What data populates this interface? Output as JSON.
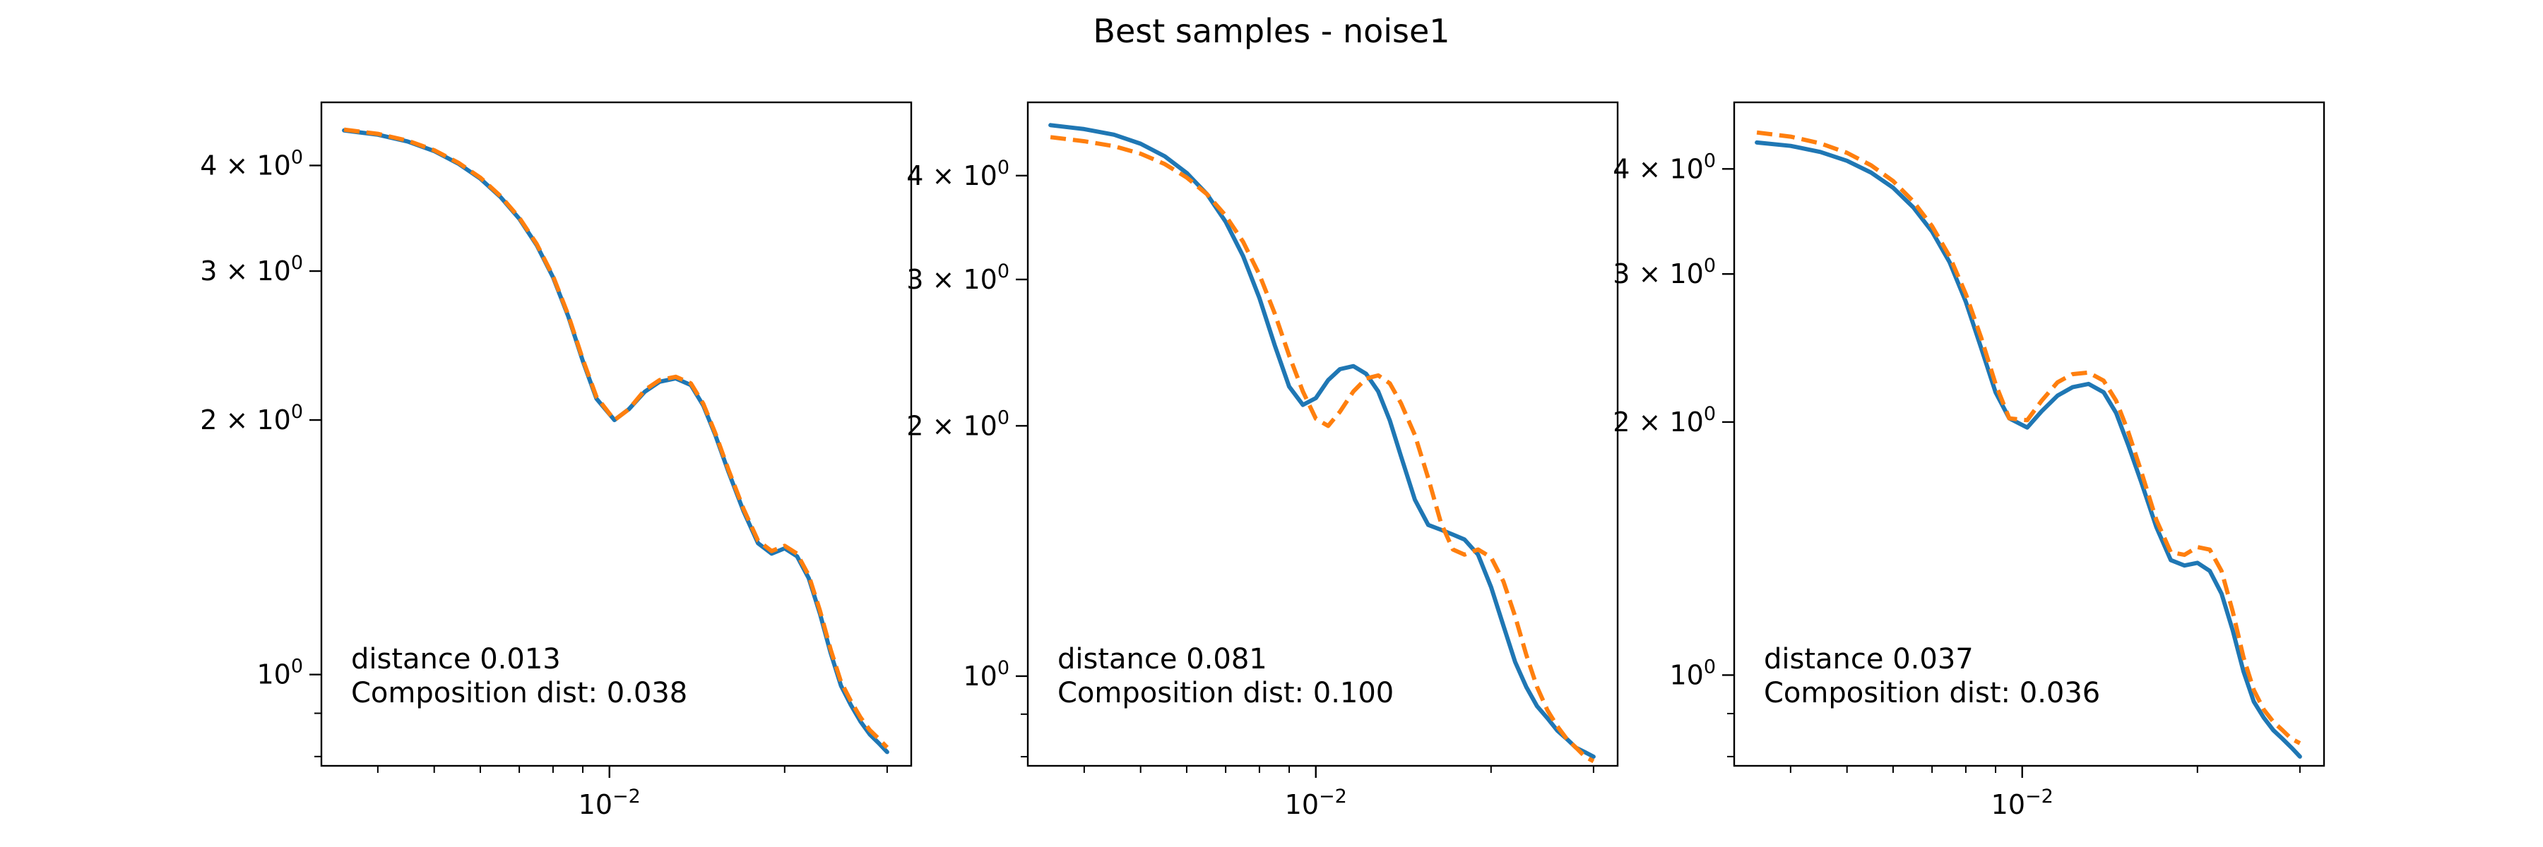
{
  "figure": {
    "title": "Best samples - noise1",
    "colors": {
      "reference": "#1f77b4",
      "sample": "#ff7f0e",
      "axes": "#000000"
    }
  },
  "chart_data": [
    {
      "type": "line",
      "xscale": "log",
      "yscale": "log",
      "xlim": [
        0.0032,
        0.033
      ],
      "ylim": [
        0.78,
        4.75
      ],
      "x_ticks": [
        {
          "value": 0.01,
          "label_base": "10",
          "label_exp": "−2"
        }
      ],
      "y_ticks": [
        {
          "value": 4,
          "label_base": "4 × 10",
          "label_exp": "0"
        },
        {
          "value": 3,
          "label_base": "3 × 10",
          "label_exp": "0"
        },
        {
          "value": 2,
          "label_base": "2 × 10",
          "label_exp": "0"
        },
        {
          "value": 1,
          "label_base": "10",
          "label_exp": "0"
        }
      ],
      "annotations": [
        "distance 0.013",
        "Composition dist: 0.038"
      ],
      "series": [
        {
          "style": "solid",
          "color": "#1f77b4",
          "x": [
            0.0035,
            0.004,
            0.0045,
            0.005,
            0.0055,
            0.006,
            0.0065,
            0.007,
            0.0075,
            0.008,
            0.0085,
            0.009,
            0.0095,
            0.0102,
            0.0108,
            0.0115,
            0.0122,
            0.013,
            0.0138,
            0.0145,
            0.0152,
            0.016,
            0.017,
            0.018,
            0.019,
            0.02,
            0.021,
            0.022,
            0.023,
            0.024,
            0.025,
            0.026,
            0.027,
            0.028,
            0.029,
            0.03
          ],
          "y": [
            4.4,
            4.35,
            4.27,
            4.16,
            4.02,
            3.86,
            3.67,
            3.46,
            3.22,
            2.95,
            2.65,
            2.35,
            2.12,
            2.0,
            2.06,
            2.16,
            2.22,
            2.24,
            2.2,
            2.08,
            1.92,
            1.74,
            1.56,
            1.43,
            1.39,
            1.41,
            1.38,
            1.3,
            1.18,
            1.06,
            0.97,
            0.92,
            0.88,
            0.85,
            0.83,
            0.81
          ]
        },
        {
          "style": "dashed",
          "color": "#ff7f0e",
          "x": [
            0.0035,
            0.004,
            0.0045,
            0.005,
            0.0055,
            0.006,
            0.0065,
            0.007,
            0.0075,
            0.008,
            0.0085,
            0.009,
            0.0095,
            0.0102,
            0.0108,
            0.0115,
            0.0122,
            0.013,
            0.0138,
            0.0145,
            0.0152,
            0.016,
            0.017,
            0.018,
            0.019,
            0.02,
            0.021,
            0.022,
            0.023,
            0.024,
            0.025,
            0.026,
            0.027,
            0.028,
            0.029,
            0.03
          ],
          "y": [
            4.41,
            4.36,
            4.28,
            4.17,
            4.03,
            3.87,
            3.68,
            3.47,
            3.23,
            2.96,
            2.66,
            2.36,
            2.13,
            2.0,
            2.06,
            2.17,
            2.23,
            2.25,
            2.21,
            2.09,
            1.93,
            1.75,
            1.57,
            1.44,
            1.4,
            1.42,
            1.39,
            1.31,
            1.19,
            1.07,
            0.98,
            0.93,
            0.89,
            0.86,
            0.84,
            0.82
          ]
        }
      ]
    },
    {
      "type": "line",
      "xscale": "log",
      "yscale": "log",
      "xlim": [
        0.0032,
        0.033
      ],
      "ylim": [
        0.78,
        4.9
      ],
      "x_ticks": [
        {
          "value": 0.01,
          "label_base": "10",
          "label_exp": "−2"
        }
      ],
      "y_ticks": [
        {
          "value": 4,
          "label_base": "4 × 10",
          "label_exp": "0"
        },
        {
          "value": 3,
          "label_base": "3 × 10",
          "label_exp": "0"
        },
        {
          "value": 2,
          "label_base": "2 × 10",
          "label_exp": "0"
        },
        {
          "value": 1,
          "label_base": "10",
          "label_exp": "0"
        }
      ],
      "annotations": [
        "distance 0.081",
        "Composition dist: 0.100"
      ],
      "series": [
        {
          "style": "solid",
          "color": "#1f77b4",
          "x": [
            0.0035,
            0.004,
            0.0045,
            0.005,
            0.0055,
            0.006,
            0.0065,
            0.007,
            0.0075,
            0.008,
            0.0085,
            0.009,
            0.0095,
            0.01,
            0.0105,
            0.011,
            0.0116,
            0.0122,
            0.0128,
            0.0134,
            0.014,
            0.0148,
            0.0156,
            0.0164,
            0.0172,
            0.018,
            0.019,
            0.02,
            0.021,
            0.022,
            0.023,
            0.024,
            0.025,
            0.026,
            0.027,
            0.028,
            0.029,
            0.03
          ],
          "y": [
            4.6,
            4.55,
            4.48,
            4.37,
            4.22,
            4.03,
            3.8,
            3.52,
            3.2,
            2.85,
            2.5,
            2.23,
            2.12,
            2.16,
            2.27,
            2.34,
            2.36,
            2.31,
            2.2,
            2.03,
            1.84,
            1.63,
            1.52,
            1.5,
            1.48,
            1.46,
            1.4,
            1.28,
            1.15,
            1.04,
            0.97,
            0.92,
            0.89,
            0.86,
            0.84,
            0.82,
            0.81,
            0.8
          ]
        },
        {
          "style": "dashed",
          "color": "#ff7f0e",
          "x": [
            0.0035,
            0.004,
            0.0045,
            0.005,
            0.0055,
            0.006,
            0.0065,
            0.007,
            0.0075,
            0.008,
            0.0085,
            0.009,
            0.0095,
            0.01,
            0.0105,
            0.011,
            0.0116,
            0.0122,
            0.0128,
            0.0134,
            0.014,
            0.0148,
            0.0156,
            0.0164,
            0.0172,
            0.018,
            0.019,
            0.02,
            0.021,
            0.022,
            0.023,
            0.024,
            0.025,
            0.026,
            0.027,
            0.028,
            0.029,
            0.03
          ],
          "y": [
            4.45,
            4.4,
            4.34,
            4.25,
            4.13,
            3.98,
            3.8,
            3.58,
            3.33,
            3.04,
            2.73,
            2.43,
            2.2,
            2.04,
            2.0,
            2.08,
            2.2,
            2.28,
            2.3,
            2.25,
            2.13,
            1.95,
            1.73,
            1.53,
            1.42,
            1.4,
            1.42,
            1.39,
            1.3,
            1.18,
            1.06,
            0.97,
            0.91,
            0.87,
            0.84,
            0.82,
            0.8,
            0.79
          ]
        }
      ]
    },
    {
      "type": "line",
      "xscale": "log",
      "yscale": "log",
      "xlim": [
        0.0032,
        0.033
      ],
      "ylim": [
        0.78,
        4.8
      ],
      "x_ticks": [
        {
          "value": 0.01,
          "label_base": "10",
          "label_exp": "−2"
        }
      ],
      "y_ticks": [
        {
          "value": 4,
          "label_base": "4 × 10",
          "label_exp": "0"
        },
        {
          "value": 3,
          "label_base": "3 × 10",
          "label_exp": "0"
        },
        {
          "value": 2,
          "label_base": "2 × 10",
          "label_exp": "0"
        },
        {
          "value": 1,
          "label_base": "10",
          "label_exp": "0"
        }
      ],
      "annotations": [
        "distance 0.037",
        "Composition dist: 0.036"
      ],
      "series": [
        {
          "style": "solid",
          "color": "#1f77b4",
          "x": [
            0.0035,
            0.004,
            0.0045,
            0.005,
            0.0055,
            0.006,
            0.0065,
            0.007,
            0.0075,
            0.008,
            0.0085,
            0.009,
            0.0095,
            0.0102,
            0.0108,
            0.0115,
            0.0122,
            0.013,
            0.0138,
            0.0145,
            0.0152,
            0.016,
            0.017,
            0.018,
            0.019,
            0.02,
            0.021,
            0.022,
            0.023,
            0.024,
            0.025,
            0.026,
            0.027,
            0.028,
            0.029,
            0.03
          ],
          "y": [
            4.3,
            4.26,
            4.19,
            4.09,
            3.96,
            3.8,
            3.6,
            3.37,
            3.1,
            2.78,
            2.45,
            2.17,
            2.02,
            1.97,
            2.06,
            2.15,
            2.2,
            2.22,
            2.17,
            2.05,
            1.88,
            1.7,
            1.5,
            1.37,
            1.35,
            1.36,
            1.33,
            1.25,
            1.13,
            1.01,
            0.93,
            0.89,
            0.86,
            0.84,
            0.82,
            0.8
          ]
        },
        {
          "style": "dashed",
          "color": "#ff7f0e",
          "x": [
            0.0035,
            0.004,
            0.0045,
            0.005,
            0.0055,
            0.006,
            0.0065,
            0.007,
            0.0075,
            0.008,
            0.0085,
            0.009,
            0.0095,
            0.0102,
            0.0108,
            0.0115,
            0.0122,
            0.013,
            0.0138,
            0.0145,
            0.0152,
            0.016,
            0.017,
            0.018,
            0.019,
            0.02,
            0.021,
            0.022,
            0.023,
            0.024,
            0.025,
            0.026,
            0.027,
            0.028,
            0.029,
            0.03
          ],
          "y": [
            4.42,
            4.37,
            4.29,
            4.18,
            4.04,
            3.87,
            3.66,
            3.42,
            3.15,
            2.84,
            2.52,
            2.22,
            2.02,
            2.01,
            2.12,
            2.23,
            2.28,
            2.29,
            2.24,
            2.12,
            1.95,
            1.75,
            1.53,
            1.4,
            1.39,
            1.42,
            1.41,
            1.33,
            1.19,
            1.05,
            0.96,
            0.91,
            0.88,
            0.86,
            0.84,
            0.83
          ]
        }
      ]
    }
  ]
}
